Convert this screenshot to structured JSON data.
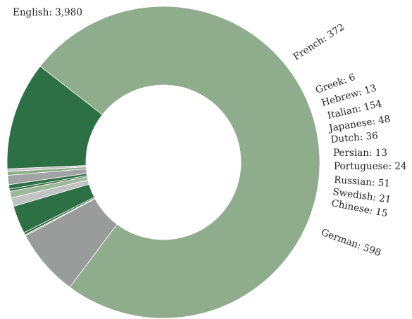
{
  "chart_data": {
    "type": "pie",
    "subtype": "donut",
    "categories": [
      "English",
      "French",
      "Greek",
      "Hebrew",
      "Italian",
      "Japanese",
      "Dutch",
      "Persian",
      "Portuguese",
      "Russian",
      "Swedish",
      "Chinese",
      "German"
    ],
    "values": [
      3980,
      372,
      6,
      13,
      154,
      48,
      36,
      13,
      24,
      51,
      21,
      15,
      598
    ],
    "labels": [
      "English: 3,980",
      "French: 372",
      "Greek: 6",
      "Hebrew: 13",
      "Italian: 154",
      "Japanese: 48",
      "Dutch: 36",
      "Persian: 13",
      "Portuguese: 24",
      "Russian: 51",
      "Swedish: 21",
      "Chinese: 15",
      "German: 598"
    ],
    "colors": [
      "#8fac8c",
      "#9a9c9b",
      "#8fac8c",
      "#3c6b48",
      "#2e7045",
      "#c2c4c3",
      "#9db89a",
      "#3a6a47",
      "#2e7045",
      "#a2a4a3",
      "#8fac8c",
      "#c2c4c3",
      "#2e7045"
    ]
  }
}
